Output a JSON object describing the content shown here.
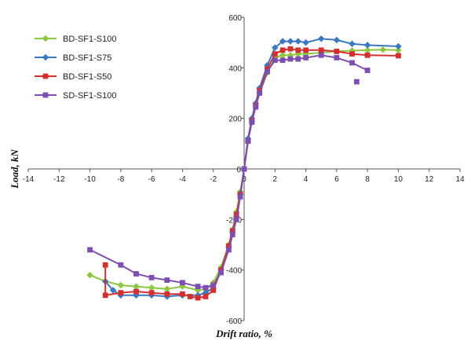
{
  "chart_data": {
    "type": "line",
    "title": "",
    "xlabel": "Drift ratio, %",
    "ylabel": "Load, kN",
    "xlim": [
      -14,
      14
    ],
    "ylim": [
      -600,
      600
    ],
    "x_ticks": [
      -14,
      -12,
      -10,
      -8,
      -6,
      -4,
      -2,
      0,
      2,
      4,
      6,
      8,
      10,
      12,
      14
    ],
    "y_ticks": [
      -600,
      -400,
      -200,
      0,
      200,
      400,
      600
    ],
    "grid": false,
    "legend_position": "top-left",
    "series": [
      {
        "name": "BD-SF1-S100",
        "color": "#8dc63f",
        "marker": "diamond",
        "points": [
          {
            "x": 0,
            "y": 0
          },
          {
            "x": 0.25,
            "y": 110
          },
          {
            "x": 0.5,
            "y": 190
          },
          {
            "x": 0.75,
            "y": 250
          },
          {
            "x": 1.0,
            "y": 300
          },
          {
            "x": 1.5,
            "y": 380
          },
          {
            "x": 2.0,
            "y": 440
          },
          {
            "x": 2.5,
            "y": 450
          },
          {
            "x": 3.0,
            "y": 450
          },
          {
            "x": 3.5,
            "y": 455
          },
          {
            "x": 4.0,
            "y": 455
          },
          {
            "x": 5.0,
            "y": 460
          },
          {
            "x": 6.0,
            "y": 465
          },
          {
            "x": 7.0,
            "y": 468
          },
          {
            "x": 8.0,
            "y": 470
          },
          {
            "x": 9.0,
            "y": 472
          },
          {
            "x": 10.0,
            "y": 470
          },
          {
            "x": null,
            "y": null
          },
          {
            "x": 0,
            "y": 0
          },
          {
            "x": -0.25,
            "y": -90
          },
          {
            "x": -0.5,
            "y": -170
          },
          {
            "x": -0.75,
            "y": -240
          },
          {
            "x": -1.0,
            "y": -300
          },
          {
            "x": -1.5,
            "y": -390
          },
          {
            "x": -2.0,
            "y": -450
          },
          {
            "x": -2.5,
            "y": -475
          },
          {
            "x": -3.0,
            "y": -480
          },
          {
            "x": -4.0,
            "y": -465
          },
          {
            "x": -5.0,
            "y": -475
          },
          {
            "x": -6.0,
            "y": -470
          },
          {
            "x": -7.0,
            "y": -465
          },
          {
            "x": -8.0,
            "y": -460
          },
          {
            "x": -9.0,
            "y": -445
          },
          {
            "x": -10.0,
            "y": -420
          }
        ]
      },
      {
        "name": "BD-SF1-S75",
        "color": "#3b78c2",
        "marker": "diamond",
        "points": [
          {
            "x": 0,
            "y": 0
          },
          {
            "x": 0.25,
            "y": 120
          },
          {
            "x": 0.5,
            "y": 200
          },
          {
            "x": 0.75,
            "y": 260
          },
          {
            "x": 1.0,
            "y": 320
          },
          {
            "x": 1.5,
            "y": 410
          },
          {
            "x": 2.0,
            "y": 480
          },
          {
            "x": 2.5,
            "y": 505
          },
          {
            "x": 3.0,
            "y": 505
          },
          {
            "x": 3.5,
            "y": 505
          },
          {
            "x": 4.0,
            "y": 500
          },
          {
            "x": 5.0,
            "y": 515
          },
          {
            "x": 6.0,
            "y": 510
          },
          {
            "x": 7.0,
            "y": 495
          },
          {
            "x": 8.0,
            "y": 490
          },
          {
            "x": 10.0,
            "y": 485
          },
          {
            "x": null,
            "y": null
          },
          {
            "x": 0,
            "y": 0
          },
          {
            "x": -0.25,
            "y": -100
          },
          {
            "x": -0.5,
            "y": -190
          },
          {
            "x": -0.75,
            "y": -250
          },
          {
            "x": -1.0,
            "y": -310
          },
          {
            "x": -1.5,
            "y": -400
          },
          {
            "x": -2.0,
            "y": -470
          },
          {
            "x": -2.5,
            "y": -490
          },
          {
            "x": -3.0,
            "y": -500
          },
          {
            "x": -4.0,
            "y": -500
          },
          {
            "x": -5.0,
            "y": -505
          },
          {
            "x": -6.0,
            "y": -500
          },
          {
            "x": -7.0,
            "y": -500
          },
          {
            "x": -8.0,
            "y": -500
          },
          {
            "x": -8.5,
            "y": -480
          },
          {
            "x": -9.0,
            "y": -445
          }
        ]
      },
      {
        "name": "BD-SF1-S50",
        "color": "#d32f2f",
        "marker": "square",
        "points": [
          {
            "x": 0,
            "y": 0
          },
          {
            "x": 0.25,
            "y": 110
          },
          {
            "x": 0.5,
            "y": 190
          },
          {
            "x": 0.75,
            "y": 250
          },
          {
            "x": 1.0,
            "y": 310
          },
          {
            "x": 1.5,
            "y": 395
          },
          {
            "x": 2.0,
            "y": 455
          },
          {
            "x": 2.5,
            "y": 470
          },
          {
            "x": 3.0,
            "y": 475
          },
          {
            "x": 3.5,
            "y": 470
          },
          {
            "x": 4.0,
            "y": 470
          },
          {
            "x": 5.0,
            "y": 470
          },
          {
            "x": 6.0,
            "y": 465
          },
          {
            "x": 7.0,
            "y": 455
          },
          {
            "x": 8.0,
            "y": 450
          },
          {
            "x": 10.0,
            "y": 448
          },
          {
            "x": null,
            "y": null
          },
          {
            "x": 0,
            "y": 0
          },
          {
            "x": -0.25,
            "y": -100
          },
          {
            "x": -0.5,
            "y": -180
          },
          {
            "x": -0.75,
            "y": -245
          },
          {
            "x": -1.0,
            "y": -305
          },
          {
            "x": -1.5,
            "y": -400
          },
          {
            "x": -2.0,
            "y": -480
          },
          {
            "x": -2.5,
            "y": -505
          },
          {
            "x": -3.0,
            "y": -510
          },
          {
            "x": -3.5,
            "y": -505
          },
          {
            "x": -4.0,
            "y": -495
          },
          {
            "x": -5.0,
            "y": -495
          },
          {
            "x": -6.0,
            "y": -490
          },
          {
            "x": -7.0,
            "y": -485
          },
          {
            "x": -8.0,
            "y": -490
          },
          {
            "x": -9.0,
            "y": -500
          },
          {
            "x": -9.0,
            "y": -380
          }
        ]
      },
      {
        "name": "SD-SF1-S100",
        "color": "#7d4fb0",
        "marker": "square",
        "points": [
          {
            "x": 0,
            "y": 0
          },
          {
            "x": 0.25,
            "y": 110
          },
          {
            "x": 0.5,
            "y": 185
          },
          {
            "x": 0.75,
            "y": 245
          },
          {
            "x": 1.0,
            "y": 300
          },
          {
            "x": 1.5,
            "y": 385
          },
          {
            "x": 2.0,
            "y": 430
          },
          {
            "x": 2.5,
            "y": 430
          },
          {
            "x": 3.0,
            "y": 435
          },
          {
            "x": 3.5,
            "y": 435
          },
          {
            "x": 4.0,
            "y": 440
          },
          {
            "x": 5.0,
            "y": 450
          },
          {
            "x": 6.0,
            "y": 440
          },
          {
            "x": 7.0,
            "y": 420
          },
          {
            "x": 8.0,
            "y": 390
          },
          {
            "x": null,
            "y": null
          },
          {
            "x": 7.3,
            "y": 345
          },
          {
            "x": null,
            "y": null
          },
          {
            "x": 0,
            "y": 0
          },
          {
            "x": -0.25,
            "y": -110
          },
          {
            "x": -0.5,
            "y": -200
          },
          {
            "x": -0.75,
            "y": -260
          },
          {
            "x": -1.0,
            "y": -320
          },
          {
            "x": -1.5,
            "y": -410
          },
          {
            "x": -2.0,
            "y": -460
          },
          {
            "x": -2.5,
            "y": -470
          },
          {
            "x": -3.0,
            "y": -465
          },
          {
            "x": -4.0,
            "y": -450
          },
          {
            "x": -5.0,
            "y": -440
          },
          {
            "x": -6.0,
            "y": -430
          },
          {
            "x": -7.0,
            "y": -415
          },
          {
            "x": -8.0,
            "y": -380
          },
          {
            "x": -10.0,
            "y": -320
          }
        ]
      }
    ]
  }
}
